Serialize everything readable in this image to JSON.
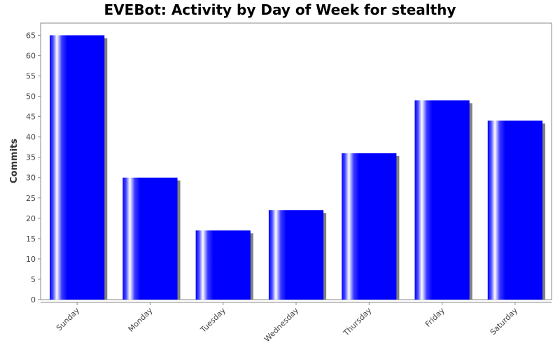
{
  "chart_data": {
    "type": "bar",
    "title": "EVEBot: Activity by Day of Week for stealthy",
    "xlabel": "",
    "ylabel": "Commits",
    "categories": [
      "Sunday",
      "Monday",
      "Tuesday",
      "Wednesday",
      "Thursday",
      "Friday",
      "Saturday"
    ],
    "values": [
      65,
      30,
      17,
      22,
      36,
      49,
      44
    ],
    "ylim": [
      0,
      68
    ],
    "yticks": [
      0,
      5,
      10,
      15,
      20,
      25,
      30,
      35,
      40,
      45,
      50,
      55,
      60,
      65
    ],
    "grid": false,
    "legend": "none",
    "bar_color": "#0000ff",
    "shadow_color": "#808080"
  }
}
